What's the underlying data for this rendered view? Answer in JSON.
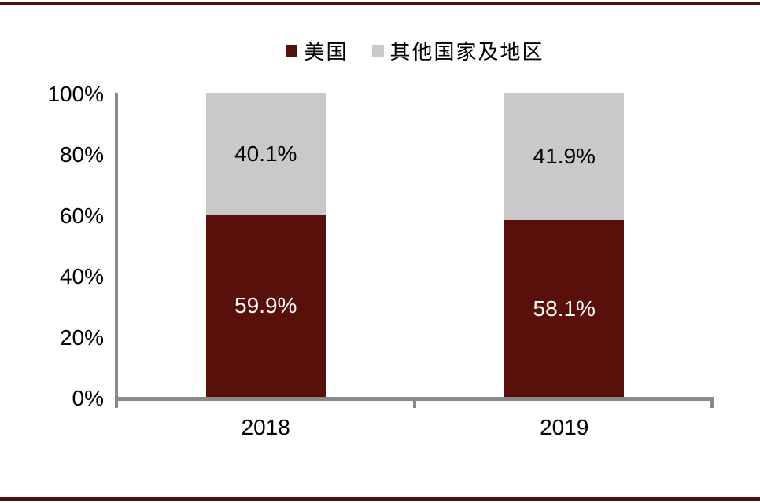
{
  "colors": {
    "background": "#FFFFFF",
    "page_rule": "#54100A",
    "axis": "#898989",
    "text": "#000000",
    "us_series": "#5A100A",
    "others_series": "#C9C9C9"
  },
  "legend": {
    "position": "top-center"
  },
  "chart_data": {
    "type": "bar",
    "stacked": true,
    "unit": "percent",
    "title": "",
    "xlabel": "",
    "ylabel": "",
    "categories": [
      "2018",
      "2019"
    ],
    "series": [
      {
        "name": "美国",
        "values": [
          59.9,
          58.1
        ],
        "labels": [
          "59.9%",
          "58.1%"
        ],
        "color": "#5A100A",
        "label_color": "#FFFFFF"
      },
      {
        "name": "其他国家及地区",
        "values": [
          40.1,
          41.9
        ],
        "labels": [
          "40.1%",
          "41.9%"
        ],
        "color": "#C9C9C9",
        "label_color": "#000000"
      }
    ],
    "ylim": [
      0,
      100
    ],
    "yticks": [
      "0%",
      "20%",
      "40%",
      "60%",
      "80%",
      "100%"
    ],
    "legend_position": "top",
    "grid": false
  }
}
